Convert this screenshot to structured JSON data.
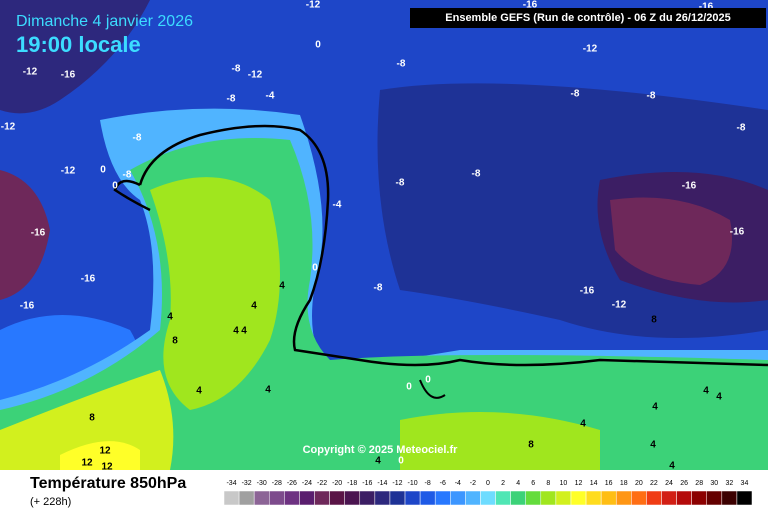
{
  "header": {
    "date": "Dimanche 4 janvier 2026",
    "time": "19:00 locale",
    "run": "Ensemble GEFS  (Run de contrôle)  -  06 Z du 26/12/2025"
  },
  "map": {
    "copyright": "Copyright © 2025 Meteociel.fr",
    "contour_labels": [
      -12,
      -16,
      -16,
      -12,
      -16,
      -8,
      -12,
      -8,
      -12,
      0,
      -4,
      -8,
      -12,
      -8,
      -8,
      -8,
      -8,
      -12,
      0,
      -8,
      0,
      -8,
      -8,
      -16,
      -4,
      -16,
      -16,
      0,
      -16,
      -8,
      -16,
      -12,
      -16,
      4,
      4,
      4,
      4,
      4,
      8,
      4,
      4,
      8,
      12,
      12,
      12,
      0,
      0,
      4,
      4,
      4,
      4,
      4,
      4,
      8,
      4,
      0,
      8
    ]
  },
  "legend": {
    "title": "Température 850hPa",
    "lead": "(+ 228h)",
    "values": [
      -34,
      -32,
      -30,
      -28,
      -26,
      -24,
      -22,
      -20,
      -18,
      -16,
      -14,
      -12,
      -10,
      -8,
      -6,
      -4,
      -2,
      0,
      2,
      4,
      6,
      8,
      10,
      12,
      14,
      16,
      18,
      20,
      22,
      24,
      26,
      28,
      30,
      32,
      34
    ],
    "colors": [
      "#c8c8c8",
      "#a0a0a0",
      "#8c6496",
      "#7d4b8c",
      "#6e3282",
      "#5a1e6e",
      "#6e285a",
      "#5a1446",
      "#4b1450",
      "#3c1e64",
      "#2d287d",
      "#1e3296",
      "#1e46c8",
      "#1e5ae6",
      "#2878ff",
      "#3c96ff",
      "#50b4ff",
      "#6edcff",
      "#50e6b4",
      "#3cd278",
      "#64dc3c",
      "#a0e61e",
      "#d2f01e",
      "#ffff28",
      "#ffdc1e",
      "#ffbe14",
      "#ff9614",
      "#ff6e14",
      "#f03c14",
      "#d21e14",
      "#b40a0a",
      "#8c0000",
      "#640000",
      "#3c0000",
      "#000000"
    ]
  }
}
